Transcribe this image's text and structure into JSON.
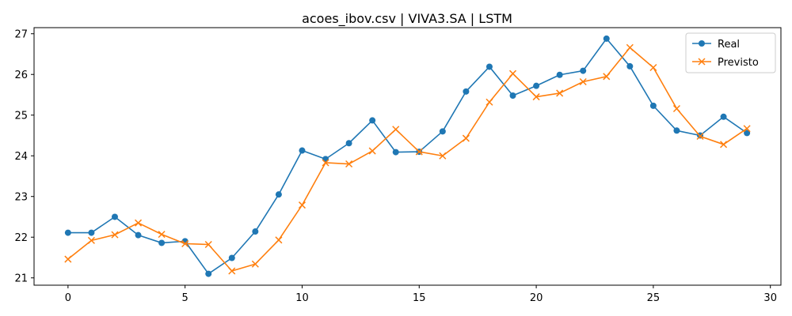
{
  "chart_data": {
    "type": "line",
    "title": "acoes_ibov.csv | VIVA3.SA | LSTM",
    "xlabel": "",
    "ylabel": "",
    "x": [
      0,
      1,
      2,
      3,
      4,
      5,
      6,
      7,
      8,
      9,
      10,
      11,
      12,
      13,
      14,
      15,
      16,
      17,
      18,
      19,
      20,
      21,
      22,
      23,
      24,
      25,
      26,
      27,
      28,
      29
    ],
    "xlim": [
      -1.45,
      30.45
    ],
    "ylim": [
      20.82,
      27.15
    ],
    "xticks": [
      "0",
      "5",
      "10",
      "15",
      "20",
      "25",
      "30"
    ],
    "yticks": [
      "21",
      "22",
      "23",
      "24",
      "25",
      "26",
      "27"
    ],
    "grid": false,
    "legend_position": "top-right",
    "series": [
      {
        "name": "Real",
        "color": "#1f77b4",
        "marker": "circle",
        "values": [
          22.11,
          22.11,
          22.5,
          22.05,
          21.86,
          21.9,
          21.1,
          21.49,
          22.14,
          23.05,
          24.13,
          23.92,
          24.31,
          24.87,
          24.09,
          24.1,
          24.6,
          25.58,
          26.19,
          25.48,
          25.72,
          25.99,
          26.09,
          26.88,
          26.2,
          25.23,
          24.62,
          24.5,
          24.96,
          24.56
        ]
      },
      {
        "name": "Previsto",
        "color": "#ff7f0e",
        "marker": "x",
        "values": [
          21.46,
          21.92,
          22.06,
          22.35,
          22.07,
          21.84,
          21.82,
          21.17,
          21.34,
          21.93,
          22.79,
          23.83,
          23.8,
          24.12,
          24.65,
          24.1,
          24.0,
          24.43,
          25.32,
          26.02,
          25.45,
          25.54,
          25.82,
          25.95,
          26.66,
          26.17,
          25.16,
          24.48,
          24.28,
          24.67
        ]
      }
    ]
  }
}
